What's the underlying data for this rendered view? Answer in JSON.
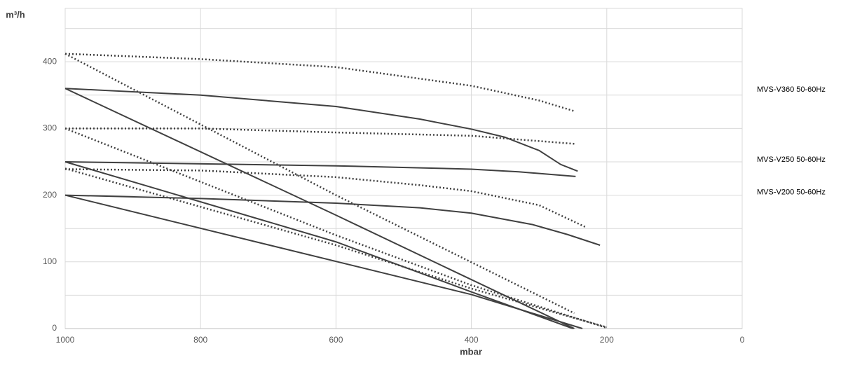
{
  "chart_data": {
    "type": "line",
    "y_label": "m³/h",
    "x_label": "mbar",
    "xlim": [
      1000,
      0
    ],
    "xticks": [
      1000,
      800,
      600,
      400,
      200,
      0
    ],
    "ylim": [
      0,
      480
    ],
    "yticks": [
      0,
      100,
      200,
      300,
      400
    ],
    "yminor": [
      50,
      150,
      250,
      350,
      450
    ],
    "grid": true,
    "series": [
      {
        "color": "#404040",
        "dashed": false,
        "x": [
          1000,
          800,
          600,
          476,
          400,
          351,
          300,
          268,
          243
        ],
        "values": [
          360,
          350,
          333,
          314,
          299,
          287,
          267,
          246,
          236
        ]
      },
      {
        "color": "#404040",
        "dashed": false,
        "x": [
          1000,
          600,
          248
        ],
        "values": [
          360,
          170,
          0
        ]
      },
      {
        "color": "#404040",
        "dashed": true,
        "x": [
          1000,
          800,
          600,
          400,
          300,
          248
        ],
        "values": [
          412,
          404,
          392,
          364,
          342,
          326
        ]
      },
      {
        "color": "#404040",
        "dashed": true,
        "x": [
          1000,
          600,
          248
        ],
        "values": [
          412,
          200,
          23
        ]
      },
      {
        "color": "#404040",
        "dashed": false,
        "x": [
          1000,
          600,
          400,
          330,
          246
        ],
        "values": [
          250,
          244,
          239,
          235,
          228
        ]
      },
      {
        "color": "#404040",
        "dashed": false,
        "x": [
          1000,
          600,
          400,
          250
        ],
        "values": [
          250,
          130,
          55,
          0
        ]
      },
      {
        "color": "#404040",
        "dashed": true,
        "x": [
          1000,
          800,
          600,
          400,
          248
        ],
        "values": [
          300,
          300,
          294,
          289,
          277
        ]
      },
      {
        "color": "#404040",
        "dashed": true,
        "x": [
          1000,
          600,
          400,
          200
        ],
        "values": [
          300,
          140,
          65,
          1
        ]
      },
      {
        "color": "#404040",
        "dashed": false,
        "x": [
          1000,
          800,
          600,
          476,
          400,
          310,
          258,
          210
        ],
        "values": [
          200,
          195,
          188,
          181,
          173,
          156,
          141,
          125
        ]
      },
      {
        "color": "#404040",
        "dashed": false,
        "x": [
          1000,
          400,
          236
        ],
        "values": [
          200,
          51,
          0
        ]
      },
      {
        "color": "#404040",
        "dashed": true,
        "x": [
          1000,
          800,
          600,
          476,
          400,
          300,
          231
        ],
        "values": [
          239,
          237,
          227,
          215,
          206,
          185,
          152
        ]
      },
      {
        "color": "#404040",
        "dashed": true,
        "x": [
          1000,
          600,
          400,
          200
        ],
        "values": [
          240,
          125,
          60,
          2
        ]
      }
    ],
    "annotations": [
      {
        "text": "MVS-V360 50-60Hz",
        "y": 358
      },
      {
        "text": "MVS-V250 50-60Hz",
        "y": 253
      },
      {
        "text": "MVS-V200 50-60Hz",
        "y": 204
      }
    ]
  }
}
